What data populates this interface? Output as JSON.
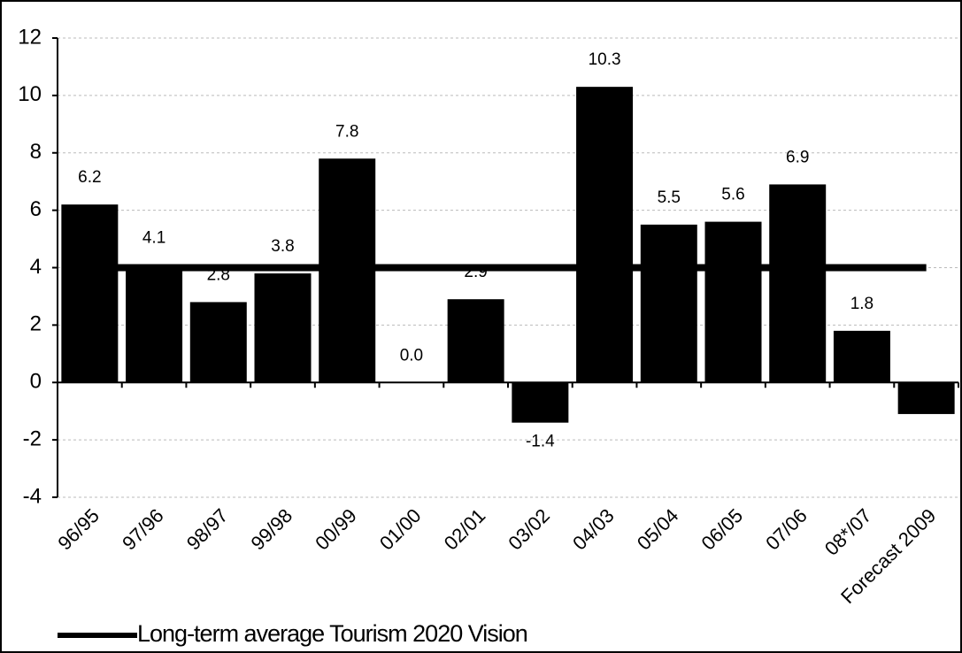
{
  "chart_data": {
    "type": "bar",
    "categories": [
      "96/95",
      "97/96",
      "98/97",
      "99/98",
      "00/99",
      "01/00",
      "02/01",
      "03/02",
      "04/03",
      "05/04",
      "06/05",
      "07/06",
      "08*/07",
      "Forecast 2009"
    ],
    "values": [
      6.2,
      4.1,
      2.8,
      3.8,
      7.8,
      0.0,
      2.9,
      -1.4,
      10.3,
      5.5,
      5.6,
      6.9,
      1.8,
      -1.1
    ],
    "value_labels": [
      "6.2",
      "4.1",
      "2.8",
      "3.8",
      "7.8",
      "0.0",
      "2.9",
      "-1.4",
      "10.3",
      "5.5",
      "5.6",
      "6.9",
      "1.8",
      null
    ],
    "color": "#000000",
    "series": [
      {
        "name": "Long-term average Tourism 2020 Vision",
        "color": "#000000",
        "values": [
          4,
          4,
          4,
          4,
          4,
          4,
          4,
          4,
          4,
          4,
          4,
          4,
          4,
          4
        ]
      }
    ],
    "ylim": [
      -4,
      12
    ],
    "yticks": [
      -4,
      -2,
      0,
      2,
      4,
      6,
      8,
      10,
      12
    ],
    "grid": true
  }
}
